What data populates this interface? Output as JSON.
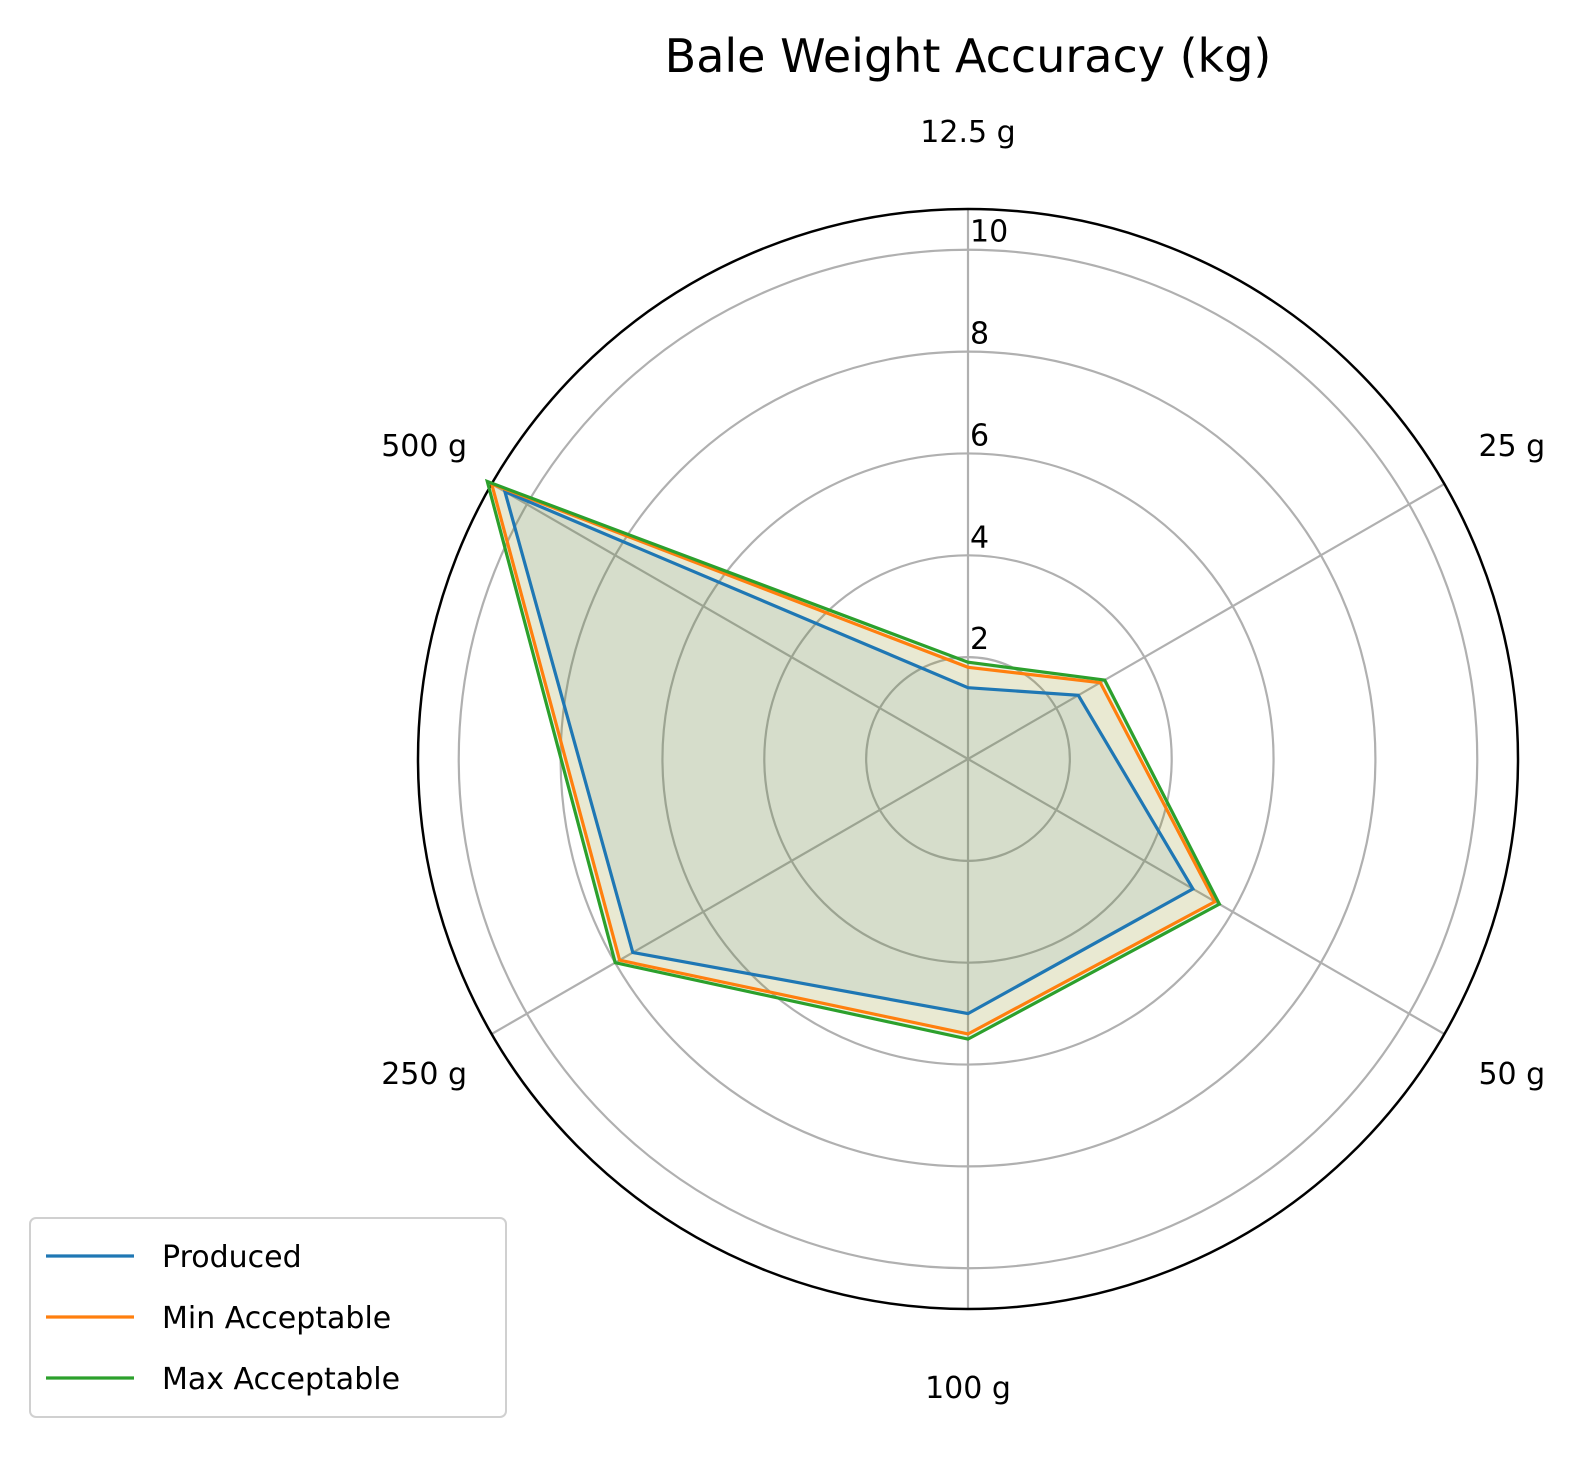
{
  "chart_data": {
    "type": "radar",
    "title": "Bale Weight Accuracy (kg)",
    "categories": [
      "12.5 g",
      "25 g",
      "50 g",
      "100 g",
      "250 g",
      "500 g"
    ],
    "r_ticks": [
      "2",
      "4",
      "6",
      "8",
      "10"
    ],
    "r_tick_values": [
      2,
      4,
      6,
      8,
      10
    ],
    "rlim": [
      0,
      10.8
    ],
    "grid": true,
    "legend_position": "lower-left",
    "series": [
      {
        "name": "Produced",
        "color": "#1f77b4",
        "values": [
          1.4,
          2.5,
          5.1,
          5.0,
          7.6,
          10.5
        ]
      },
      {
        "name": "Min Acceptable",
        "color": "#ff7f0e",
        "values": [
          1.8,
          3.0,
          5.6,
          5.4,
          7.9,
          10.8
        ]
      },
      {
        "name": "Max Acceptable",
        "color": "#2ca02c",
        "values": [
          1.9,
          3.1,
          5.7,
          5.5,
          8.0,
          10.9
        ]
      }
    ]
  }
}
